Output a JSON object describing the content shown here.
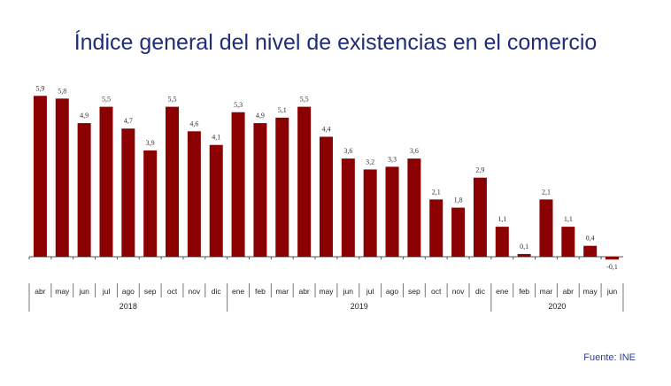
{
  "chart_data": {
    "type": "bar",
    "title": "Índice general del nivel de existencias en el comercio",
    "categories": [
      "abr",
      "may",
      "jun",
      "jul",
      "ago",
      "sep",
      "oct",
      "nov",
      "dic",
      "ene",
      "feb",
      "mar",
      "abr",
      "may",
      "jun",
      "jul",
      "ago",
      "sep",
      "oct",
      "nov",
      "dic",
      "ene",
      "feb",
      "mar",
      "abr",
      "may",
      "jun"
    ],
    "values": [
      5.9,
      5.8,
      4.9,
      5.5,
      4.7,
      3.9,
      5.5,
      4.6,
      4.1,
      5.3,
      4.9,
      5.1,
      5.5,
      4.4,
      3.6,
      3.2,
      3.3,
      3.6,
      2.1,
      1.8,
      2.9,
      1.1,
      0.1,
      2.1,
      1.1,
      0.4,
      -0.1
    ],
    "data_labels": [
      "5,9",
      "5,8",
      "4,9",
      "5,5",
      "4,7",
      "3,9",
      "5,5",
      "4,6",
      "4,1",
      "5,3",
      "4,9",
      "5,1",
      "5,5",
      "4,4",
      "3,6",
      "3,2",
      "3,3",
      "3,6",
      "2,1",
      "1,8",
      "2,9",
      "1,1",
      "0,1",
      "2,1",
      "1,1",
      "0,4",
      "-0,1"
    ],
    "groups": [
      {
        "label": "2018",
        "count": 9
      },
      {
        "label": "2019",
        "count": 12
      },
      {
        "label": "2020",
        "count": 6
      }
    ],
    "bar_color": "#8b0000",
    "xlabel": "",
    "ylabel": "",
    "grid": false
  },
  "source": "Fuente: INE"
}
